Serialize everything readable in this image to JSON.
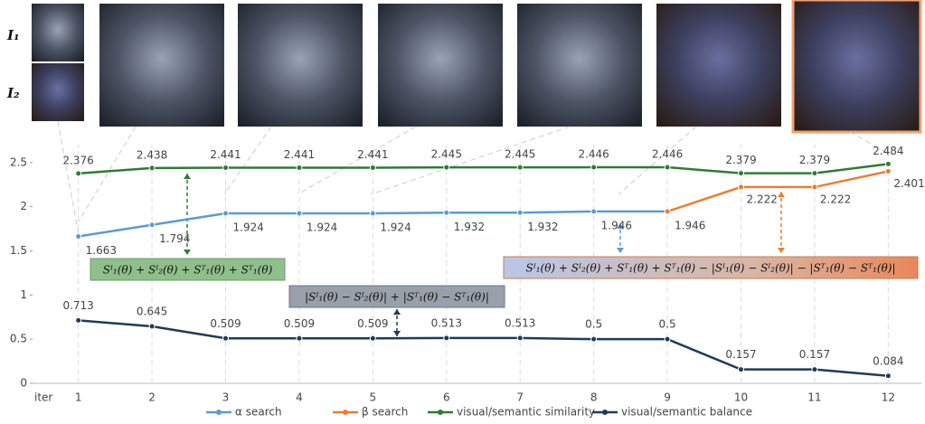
{
  "chart_data": {
    "type": "line",
    "xlabel": "iter",
    "x": [
      1,
      2,
      3,
      4,
      5,
      6,
      7,
      8,
      9,
      10,
      11,
      12
    ],
    "xlim": [
      0.55,
      12.45
    ],
    "xticks": [
      1,
      2,
      3,
      4,
      5,
      6,
      7,
      8,
      9,
      10,
      11,
      12
    ],
    "ylim": [
      0,
      2.6
    ],
    "yticks": [
      0,
      0.5,
      1,
      1.5,
      2,
      2.5
    ],
    "series": [
      {
        "name": "α search",
        "color": "#5b9bd5",
        "values": [
          1.663,
          1.794,
          1.924,
          1.924,
          1.924,
          1.932,
          1.932,
          1.946,
          1.946,
          null,
          null,
          null
        ]
      },
      {
        "name": "β search",
        "color": "#ed7d31",
        "values": [
          null,
          null,
          null,
          null,
          null,
          null,
          null,
          null,
          1.946,
          2.222,
          2.222,
          2.401
        ],
        "value_labels": [
          null,
          null,
          null,
          null,
          null,
          null,
          null,
          null,
          null,
          "2.222",
          "2.222",
          "2.401"
        ]
      },
      {
        "name": "visual/semantic similarity",
        "color": "#2e7d32",
        "values": [
          2.376,
          2.438,
          2.441,
          2.441,
          2.441,
          2.445,
          2.445,
          2.446,
          2.446,
          2.379,
          2.379,
          2.484
        ]
      },
      {
        "name": "visual/semantic balance",
        "color": "#1f3b57",
        "values": [
          0.713,
          0.645,
          0.509,
          0.509,
          0.509,
          0.513,
          0.513,
          0.5,
          0.5,
          0.157,
          0.157,
          0.084
        ]
      }
    ],
    "annotations": [
      "Sᴵ₁(θ) + Sᴵ₂(θ) + Sᵀ₁(θ) + Sᵀ₁(θ)",
      "|Sᴵ₁(θ) − Sᴵ₂(θ)| + |Sᵀ₁(θ) − Sᵀ₁(θ)|",
      "Sᴵ₁(θ) + Sᴵ₂(θ) + Sᵀ₁(θ) + Sᵀ₁(θ) − |Sᴵ₁(θ) − Sᴵ₂(θ)| − |Sᵀ₁(θ) − Sᵀ₁(θ)|"
    ],
    "image_labels": [
      "I₁",
      "I₂"
    ]
  }
}
